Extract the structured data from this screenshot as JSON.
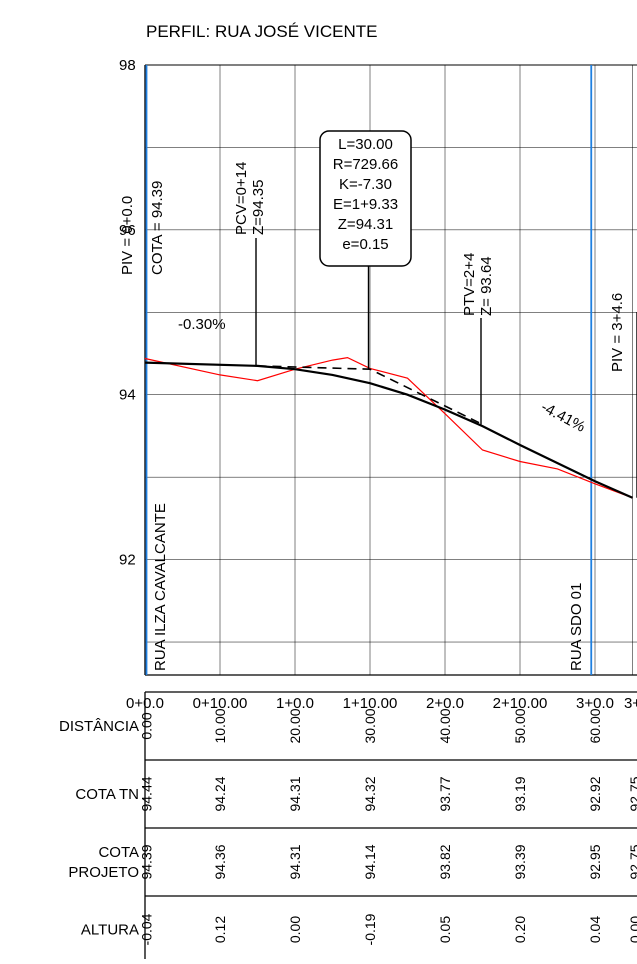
{
  "title": "PERFIL: RUA JOSÉ VICENTE",
  "colors": {
    "terrain": "#ff0000",
    "project": "#000000",
    "marker": "#1e7fe0",
    "grid": "#000000"
  },
  "chart_data": {
    "type": "line",
    "ylim": [
      90.6,
      98.0
    ],
    "xlim": [
      0,
      65
    ],
    "y_ticks": [
      "98",
      "96",
      "94",
      "92"
    ],
    "y_tick_values": [
      98,
      96,
      94,
      92
    ],
    "x_ticks": [
      "0+0.0",
      "0+10.00",
      "1+0.0",
      "1+10.00",
      "2+0.0",
      "2+10.00",
      "3+0.0",
      "3+"
    ],
    "x_tick_values": [
      0,
      10,
      20,
      30,
      40,
      50,
      60,
      65
    ],
    "series": [
      {
        "key": "terrain",
        "x": [
          0,
          10,
          15,
          20,
          25,
          27,
          30,
          35,
          40,
          45,
          50,
          55,
          60,
          65
        ],
        "y": [
          94.44,
          94.24,
          94.17,
          94.31,
          94.42,
          94.45,
          94.32,
          94.2,
          93.77,
          93.33,
          93.19,
          93.1,
          92.92,
          92.75
        ]
      },
      {
        "key": "project",
        "x": [
          0,
          15,
          20,
          25,
          30,
          35,
          40,
          45,
          50,
          55,
          60,
          65
        ],
        "y": [
          94.39,
          94.35,
          94.31,
          94.24,
          94.14,
          94.0,
          93.82,
          93.62,
          93.39,
          93.17,
          92.95,
          92.75
        ]
      },
      {
        "key": "tangent",
        "x": [
          15,
          30,
          45
        ],
        "y": [
          94.35,
          94.31,
          93.64
        ]
      }
    ],
    "annotations": {
      "piv_start": "PIV = 0+0.0",
      "cota_start": "COTA = 94.39",
      "pcv": [
        "PCV=0+14",
        "Z=94.35"
      ],
      "curve_box": [
        "L=30.00",
        "R=729.66",
        "K=-7.30",
        "E=1+9.33",
        "Z=94.31",
        "e=0.15"
      ],
      "ptv": [
        "PTV=2+4",
        "Z= 93.64"
      ],
      "piv_end": "PIV = 3+4.6",
      "slope_1": "-0.30%",
      "slope_2": "-4.41%",
      "street_left": "RUA ILZA CAVALCANTE",
      "street_right": "RUA SDO 01"
    }
  },
  "table": {
    "rows": [
      {
        "label": [
          "DISTÂNCIA"
        ],
        "values": [
          "0.00",
          "10.00",
          "20.00",
          "30.00",
          "40.00",
          "50.00",
          "60.00",
          ""
        ]
      },
      {
        "label": [
          "COTA TN"
        ],
        "values": [
          "94.44",
          "94.24",
          "94.31",
          "94.32",
          "93.77",
          "93.19",
          "92.92",
          "92.75"
        ]
      },
      {
        "label": [
          "COTA",
          "PROJETO"
        ],
        "values": [
          "94.39",
          "94.36",
          "94.31",
          "94.14",
          "93.82",
          "93.39",
          "92.95",
          "92.75"
        ]
      },
      {
        "label": [
          "ALTURA"
        ],
        "values": [
          "-0.04",
          "0.12",
          "0.00",
          "-0.19",
          "0.05",
          "0.20",
          "0.04",
          "0.00"
        ]
      }
    ]
  }
}
